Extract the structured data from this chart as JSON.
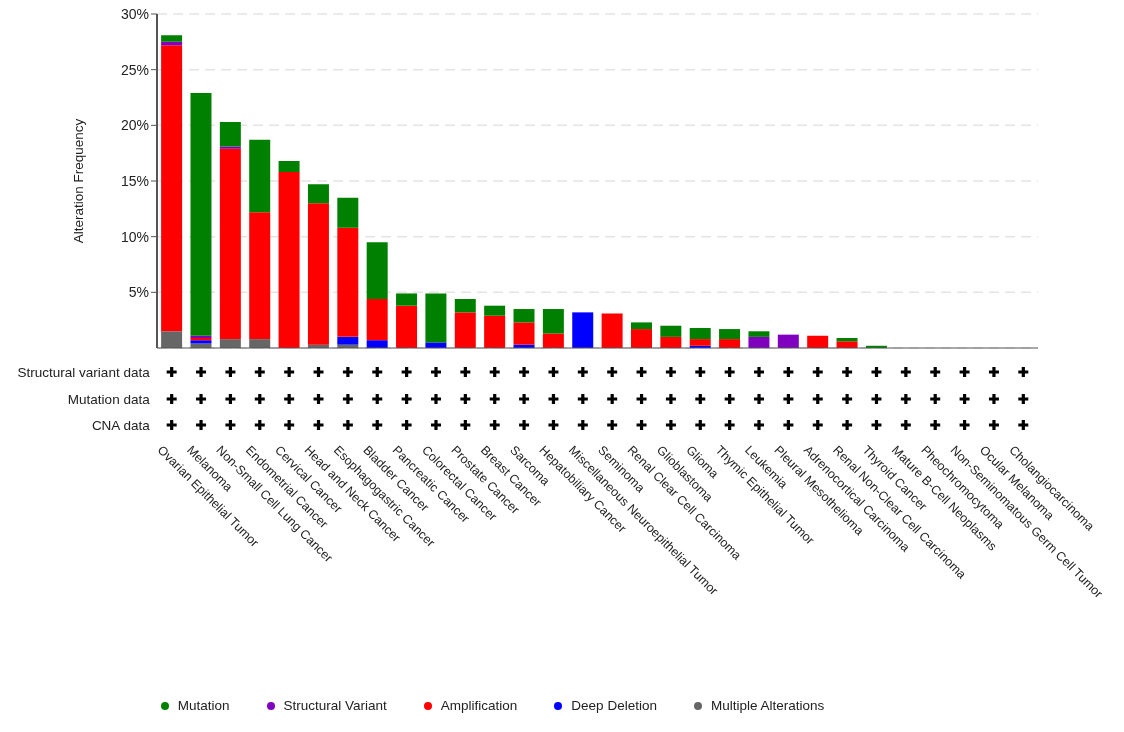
{
  "chart_data": {
    "type": "bar",
    "stacked": true,
    "ylabel": "Alteration Frequency",
    "categories": [
      "Ovarian Epithelial Tumor",
      "Melanoma",
      "Non-Small Cell Lung Cancer",
      "Endometrial Cancer",
      "Cervical Cancer",
      "Head and Neck Cancer",
      "Esophagogastric Cancer",
      "Bladder Cancer",
      "Pancreatic Cancer",
      "Colorectal Cancer",
      "Prostate Cancer",
      "Breast Cancer",
      "Sarcoma",
      "Hepatobiliary Cancer",
      "Miscellaneous Neuroepithelial Tumor",
      "Seminoma",
      "Renal Clear Cell Carcinoma",
      "Glioblastoma",
      "Glioma",
      "Thymic Epithelial Tumor",
      "Leukemia",
      "Pleural Mesothelioma",
      "Adrenocortical Carcinoma",
      "Renal Non-Clear Cell Carcinoma",
      "Thyroid Cancer",
      "Mature B-Cell Neoplasms",
      "Pheochromocytoma",
      "Non-Seminomatous Germ Cell Tumor",
      "Ocular Melanoma",
      "Cholangiocarcinoma"
    ],
    "series": [
      {
        "name": "Multiple Alterations",
        "color": "#666666",
        "values": [
          1.5,
          0.4,
          0.8,
          0.8,
          0,
          0.3,
          0.3,
          0,
          0,
          0,
          0,
          0,
          0,
          0,
          0,
          0,
          0,
          0,
          0,
          0,
          0,
          0,
          0,
          0,
          0,
          0,
          0,
          0,
          0,
          0
        ]
      },
      {
        "name": "Deep Deletion",
        "color": "#0000ff",
        "values": [
          0,
          0.3,
          0,
          0,
          0,
          0,
          0.7,
          0.7,
          0,
          0.5,
          0,
          0,
          0.3,
          0,
          3.2,
          0,
          0,
          0,
          0.2,
          0,
          0,
          0,
          0,
          0,
          0,
          0,
          0,
          0,
          0,
          0
        ]
      },
      {
        "name": "Amplification",
        "color": "#ff0000",
        "values": [
          25.7,
          0.2,
          17.1,
          11.4,
          15.8,
          12.7,
          9.8,
          3.7,
          3.8,
          0,
          3.2,
          2.9,
          2.0,
          1.3,
          0,
          3.1,
          1.7,
          1.0,
          0.6,
          0.8,
          0,
          0,
          1.1,
          0.6,
          0,
          0,
          0,
          0,
          0,
          0
        ]
      },
      {
        "name": "Structural Variant",
        "color": "#8000c0",
        "values": [
          0.3,
          0.2,
          0.2,
          0,
          0,
          0,
          0,
          0,
          0,
          0,
          0,
          0,
          0,
          0,
          0,
          0,
          0,
          0,
          0,
          0,
          1.0,
          1.2,
          0,
          0,
          0,
          0,
          0,
          0,
          0,
          0
        ]
      },
      {
        "name": "Mutation",
        "color": "#008000",
        "values": [
          0.6,
          21.8,
          2.2,
          6.5,
          1.0,
          1.7,
          2.7,
          5.1,
          1.1,
          4.4,
          1.2,
          0.9,
          1.2,
          2.2,
          0,
          0,
          0.6,
          1.0,
          1.0,
          0.9,
          0.5,
          0,
          0,
          0.3,
          0.2,
          0,
          0,
          0,
          0,
          0
        ]
      }
    ],
    "ylim": [
      0,
      30
    ],
    "yticks": [
      {
        "value": 5,
        "label": "5%"
      },
      {
        "value": 10,
        "label": "10%"
      },
      {
        "value": 15,
        "label": "15%"
      },
      {
        "value": 20,
        "label": "20%"
      },
      {
        "value": 25,
        "label": "25%"
      },
      {
        "value": 30,
        "label": "30%"
      }
    ],
    "grid": "y",
    "legend": "bottom",
    "annotations": [
      "Structural variant data",
      "Mutation data",
      "CNA data"
    ]
  }
}
